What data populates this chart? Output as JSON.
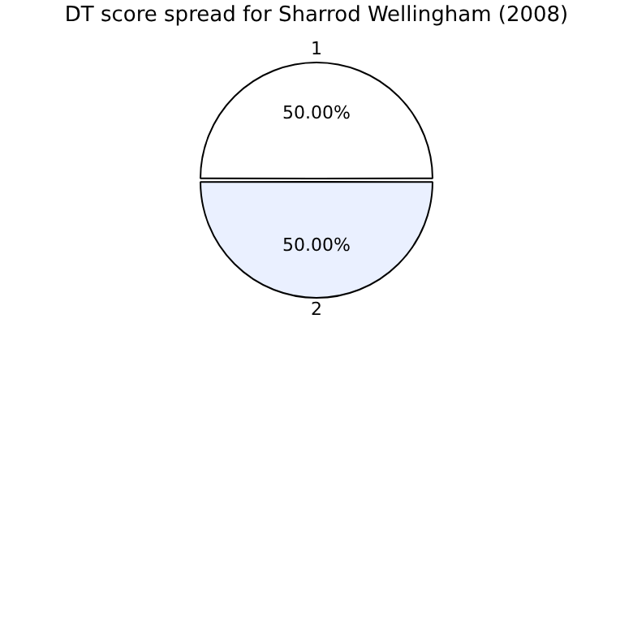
{
  "chart_data": {
    "type": "pie",
    "title": "DT score spread for Sharrod Wellingham (2008)",
    "categories": [
      "1",
      "2"
    ],
    "values": [
      50,
      50
    ],
    "colors": [
      "#ffffff",
      "#eaf0ff"
    ],
    "value_labels": [
      "50.00%",
      "50.00%"
    ],
    "legend": false
  }
}
